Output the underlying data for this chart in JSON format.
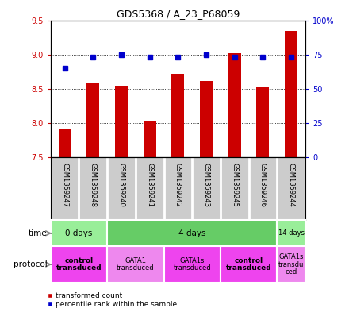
{
  "title": "GDS5368 / A_23_P68059",
  "samples": [
    "GSM1359247",
    "GSM1359248",
    "GSM1359240",
    "GSM1359241",
    "GSM1359242",
    "GSM1359243",
    "GSM1359245",
    "GSM1359246",
    "GSM1359244"
  ],
  "transformed_counts": [
    7.92,
    8.58,
    8.55,
    8.03,
    8.72,
    8.62,
    9.02,
    8.52,
    9.35
  ],
  "percentile_ranks": [
    65,
    73,
    75,
    73,
    73,
    75,
    73,
    73,
    73
  ],
  "ylim": [
    7.5,
    9.5
  ],
  "y2lim": [
    0,
    100
  ],
  "yticks": [
    7.5,
    8.0,
    8.5,
    9.0,
    9.5
  ],
  "y2ticks": [
    0,
    25,
    50,
    75,
    100
  ],
  "bar_color": "#cc0000",
  "dot_color": "#0000cc",
  "bar_width": 0.45,
  "time_groups": [
    {
      "label": "0 days",
      "start": 0,
      "end": 2,
      "color": "#99ee99"
    },
    {
      "label": "4 days",
      "start": 2,
      "end": 8,
      "color": "#66cc66"
    },
    {
      "label": "14 days",
      "start": 8,
      "end": 9,
      "color": "#99ee99"
    }
  ],
  "protocol_groups": [
    {
      "label": "control\ntransduced",
      "start": 0,
      "end": 2,
      "color": "#ee44ee",
      "bold": true
    },
    {
      "label": "GATA1\ntransduced",
      "start": 2,
      "end": 4,
      "color": "#ee88ee",
      "bold": false
    },
    {
      "label": "GATA1s\ntransduced",
      "start": 4,
      "end": 6,
      "color": "#ee44ee",
      "bold": false
    },
    {
      "label": "control\ntransduced",
      "start": 6,
      "end": 8,
      "color": "#ee44ee",
      "bold": true
    },
    {
      "label": "GATA1s\ntransdu\nced",
      "start": 8,
      "end": 9,
      "color": "#ee88ee",
      "bold": false
    }
  ],
  "sample_bg": "#cccccc",
  "bg_color": "#ffffff",
  "grid_color": "#000000",
  "label_color_left": "#cc0000",
  "label_color_right": "#0000cc",
  "legend_items": [
    {
      "color": "#cc0000",
      "label": "transformed count"
    },
    {
      "color": "#0000cc",
      "label": "percentile rank within the sample"
    }
  ]
}
